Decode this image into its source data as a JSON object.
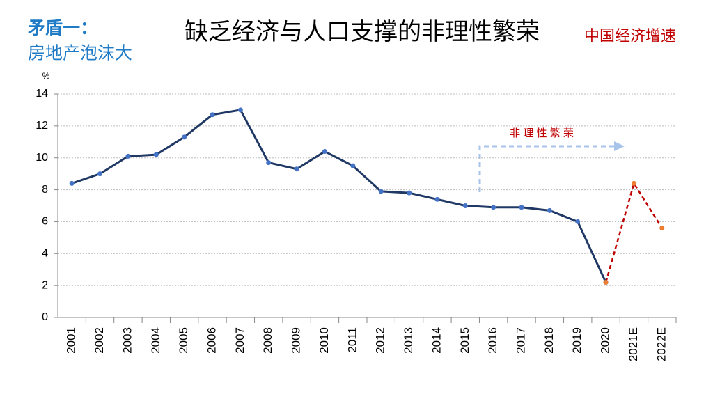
{
  "chart_data": {
    "type": "line",
    "title": "缺乏经济与人口支撑的非理性繁荣",
    "subtitle": "中国经济增速",
    "heading": "矛盾一：",
    "subheading": "房地产泡沫大",
    "y_label": "%",
    "annotation": "非 理 性 繁 荣",
    "categories": [
      "2001",
      "2002",
      "2003",
      "2004",
      "2005",
      "2006",
      "2007",
      "2008",
      "2009",
      "2010",
      "2011",
      "2012",
      "2013",
      "2014",
      "2015",
      "2016",
      "2017",
      "2018",
      "2019",
      "2020",
      "2021E",
      "2022E"
    ],
    "series": [
      {
        "color": "#1f3864",
        "marker_color": "#4472c4",
        "dash": false,
        "values": [
          8.4,
          9.0,
          10.1,
          10.2,
          11.3,
          12.7,
          13.0,
          9.7,
          9.3,
          10.4,
          9.5,
          7.9,
          7.8,
          7.4,
          7.0,
          6.9,
          6.9,
          6.7,
          6.0,
          2.2,
          null,
          null
        ]
      },
      {
        "color": "#c00000",
        "marker_color": "#ed7d31",
        "dash": true,
        "values": [
          null,
          null,
          null,
          null,
          null,
          null,
          null,
          null,
          null,
          null,
          null,
          null,
          null,
          null,
          null,
          null,
          null,
          null,
          null,
          2.2,
          8.4,
          5.6
        ]
      }
    ],
    "ylim": [
      0,
      14
    ],
    "yticks": [
      0,
      2,
      4,
      6,
      8,
      10,
      12,
      14
    ],
    "grid": true
  }
}
